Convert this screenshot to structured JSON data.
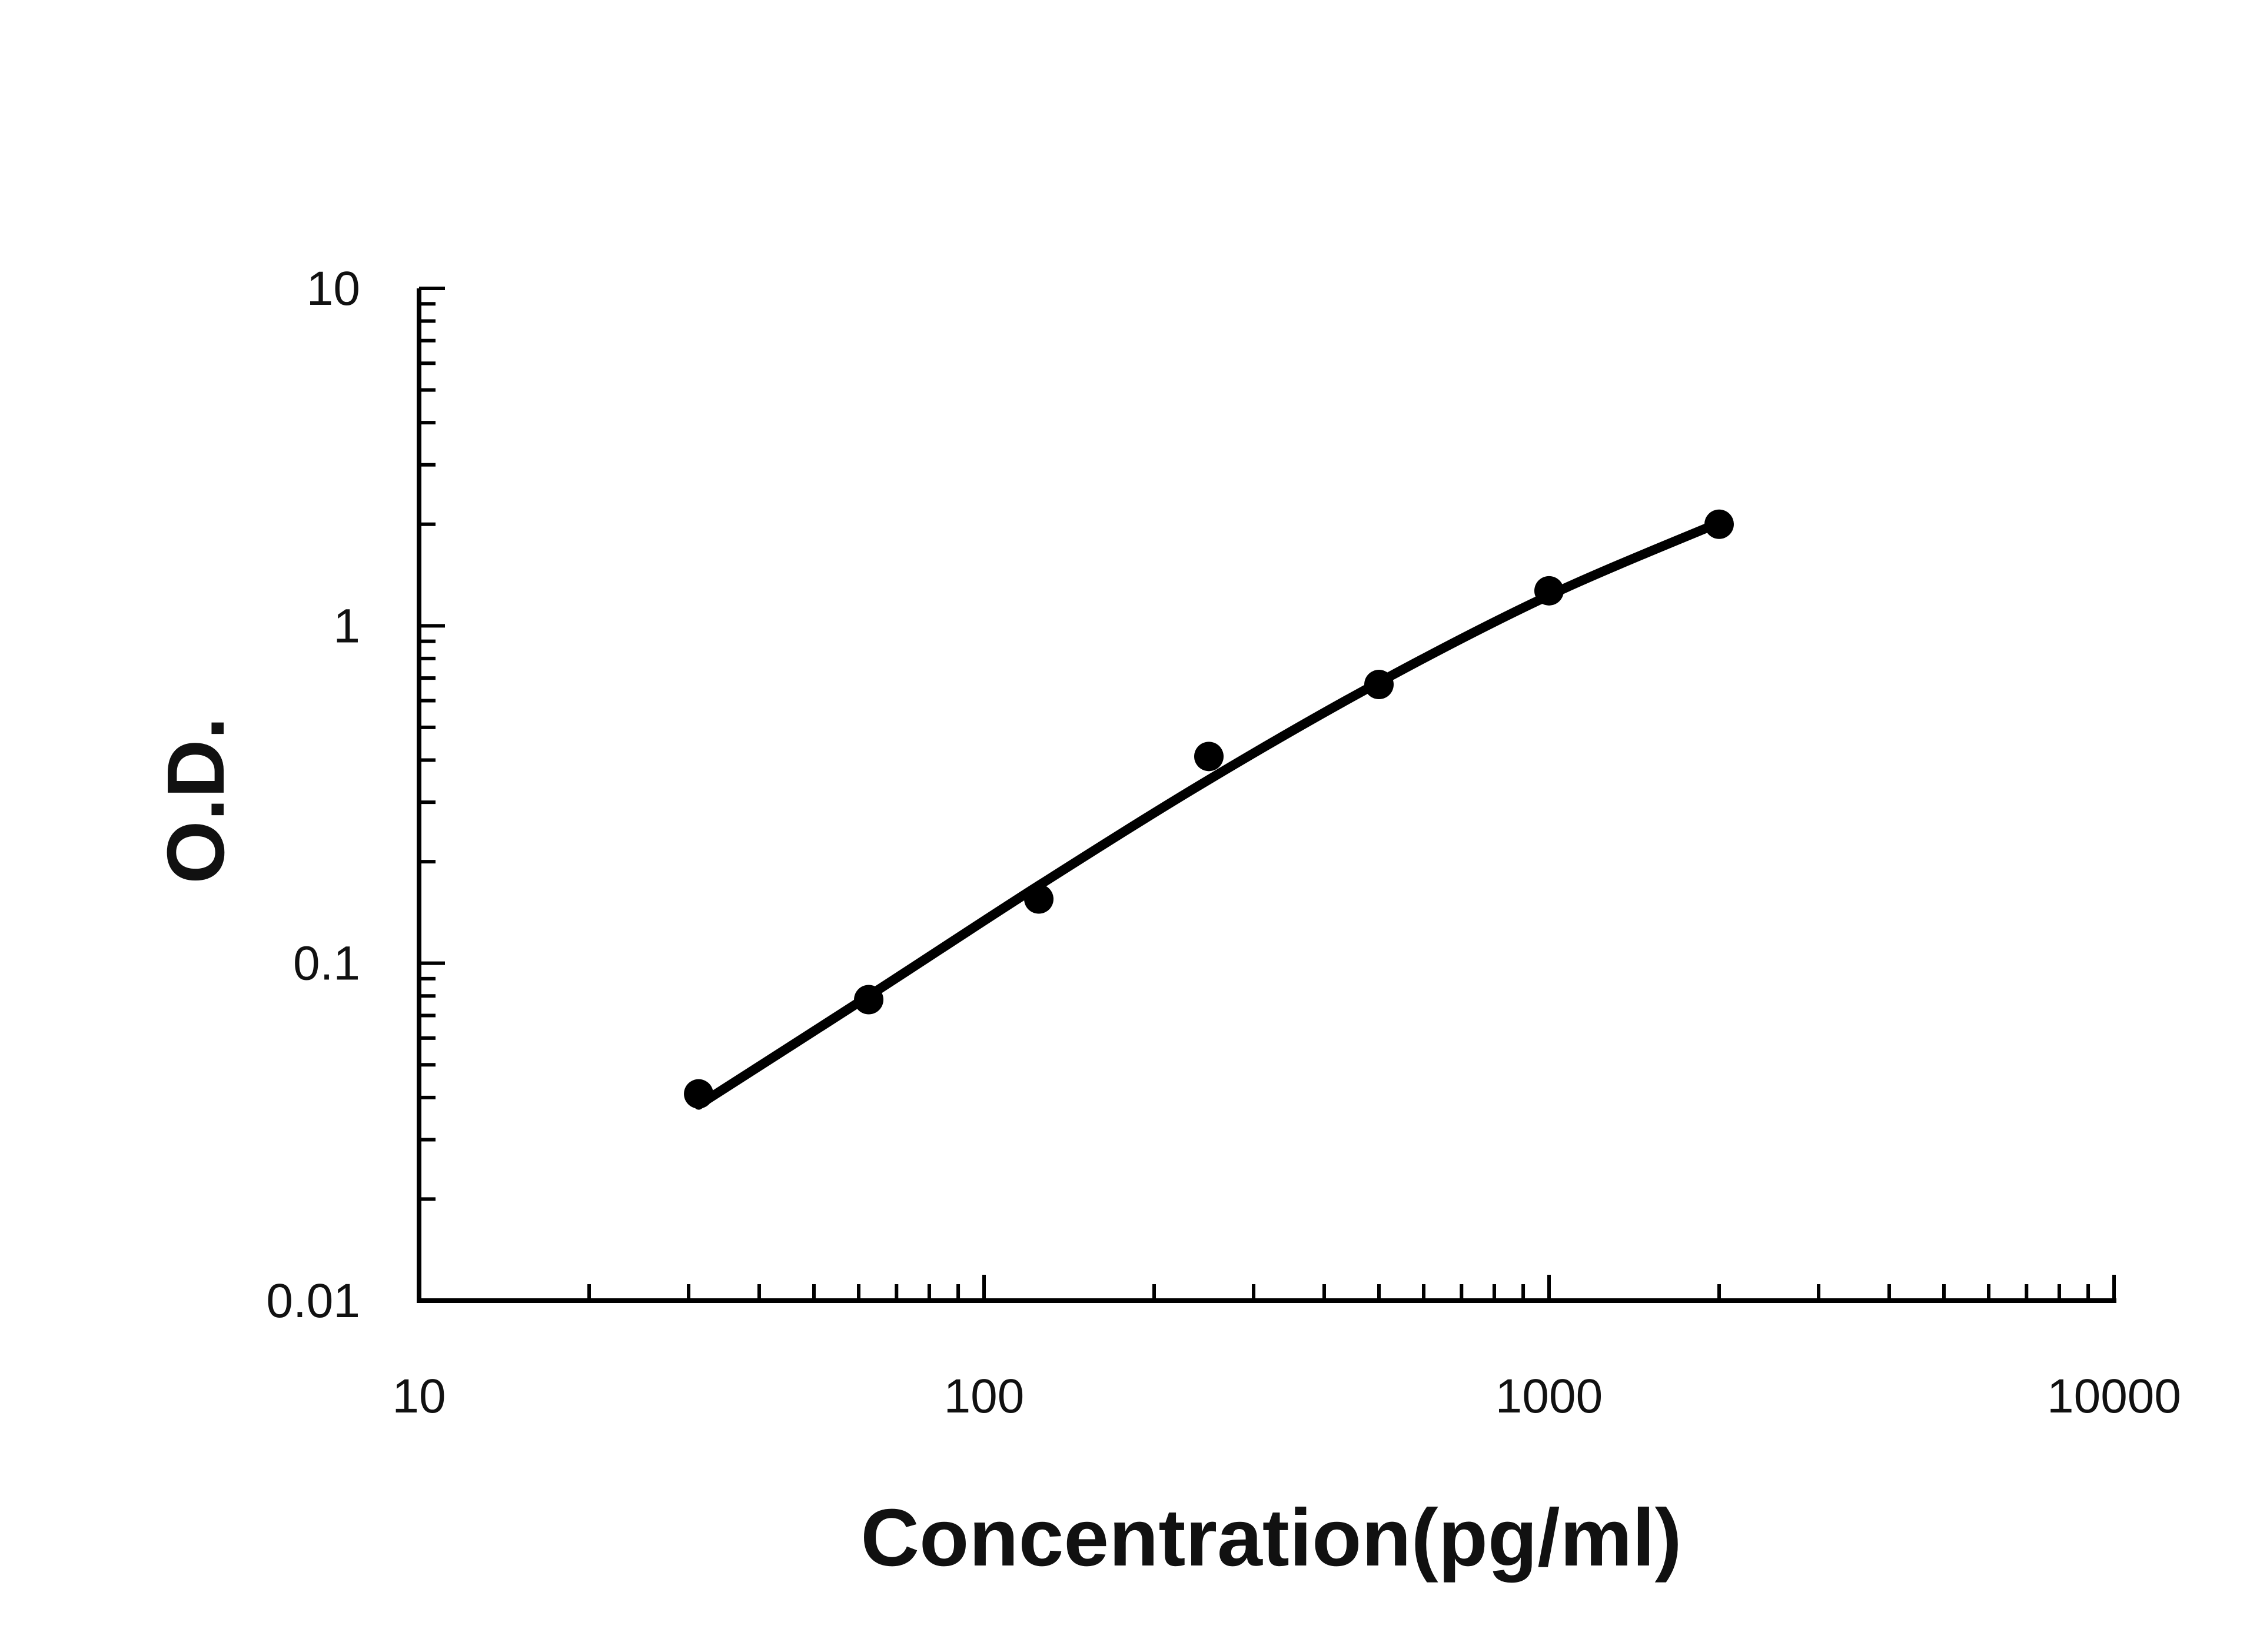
{
  "chart_data": {
    "type": "scatter",
    "title": "",
    "xlabel": "Concentration(pg/ml)",
    "ylabel": "O.D.",
    "x_scale": "log",
    "y_scale": "log",
    "xlim": [
      10,
      10000
    ],
    "ylim": [
      0.01,
      10
    ],
    "x_ticks": [
      10,
      100,
      1000,
      10000
    ],
    "x_tick_labels": [
      "10",
      "100",
      "1000",
      "10000"
    ],
    "y_ticks": [
      0.01,
      0.1,
      1,
      10
    ],
    "y_tick_labels": [
      "0.01",
      "0.1",
      "1",
      "10"
    ],
    "grid": false,
    "series": [
      {
        "kind": "points",
        "x": [
          31.25,
          62.5,
          125,
          250,
          500,
          1000,
          2000
        ],
        "y": [
          0.041,
          0.078,
          0.155,
          0.41,
          0.67,
          1.27,
          2.0
        ]
      },
      {
        "kind": "fit-curve",
        "x": [
          31.25,
          62.5,
          125,
          250,
          500,
          1000,
          2000
        ],
        "y": [
          0.038,
          0.08,
          0.17,
          0.35,
          0.68,
          1.23,
          2.02
        ]
      }
    ],
    "colors": {
      "points": "#000000",
      "curve": "#000000",
      "axis": "#000000"
    }
  }
}
